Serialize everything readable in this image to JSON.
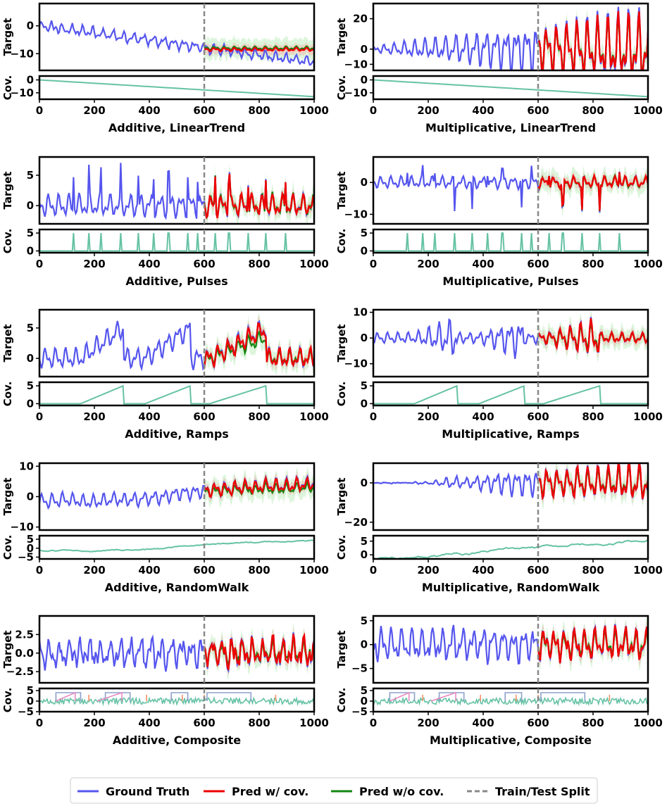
{
  "chart_data": {
    "type": "line",
    "title": "",
    "legend": {
      "placement": "bottom-center",
      "entries": [
        {
          "key": "gt",
          "label": "Ground Truth",
          "color": "#5555ee",
          "style": "solid"
        },
        {
          "key": "pw",
          "label": "Pred w/ cov.",
          "color": "#ee0000",
          "style": "solid"
        },
        {
          "key": "pwo",
          "label": "Pred w/o cov.",
          "color": "#118811",
          "style": "solid"
        },
        {
          "key": "split",
          "label": "Train/Test Split",
          "color": "#888888",
          "style": "dashed"
        }
      ]
    },
    "split_x": 600,
    "x_range": [
      0,
      1000
    ],
    "x_ticks": [
      0,
      200,
      400,
      600,
      800,
      1000
    ],
    "target_ylabel": "Target",
    "cov_ylabel": "Cov.",
    "panels": [
      {
        "name": "Additive, LinearTrend",
        "kind": "lin",
        "mode": "add",
        "ylim": [
          -16,
          8
        ],
        "yticks": [
          0,
          -10
        ],
        "tick_labels": [
          "0",
          "−10"
        ],
        "cov_ylim": [
          -15,
          3
        ],
        "cov_yticks": [
          0,
          -10
        ],
        "cov_tick_labels": [
          "0",
          "−10"
        ]
      },
      {
        "name": "Multiplicative, LinearTrend",
        "kind": "lin",
        "mode": "mul",
        "ylim": [
          -14,
          30
        ],
        "yticks": [
          20,
          0,
          -10
        ],
        "tick_labels": [
          "20",
          "0",
          "−10"
        ],
        "cov_ylim": [
          -15,
          3
        ],
        "cov_yticks": [
          0,
          -10
        ],
        "cov_tick_labels": [
          "0",
          "−10"
        ]
      },
      {
        "name": "Additive, Pulses",
        "kind": "pul",
        "mode": "add",
        "ylim": [
          -3,
          8
        ],
        "yticks": [
          5,
          0
        ],
        "tick_labels": [
          "5",
          "0"
        ],
        "cov_ylim": [
          -0.5,
          6
        ],
        "cov_yticks": [
          5,
          0
        ],
        "cov_tick_labels": [
          "5",
          "0"
        ]
      },
      {
        "name": "Multiplicative, Pulses",
        "kind": "pul",
        "mode": "mul",
        "ylim": [
          -13,
          8
        ],
        "yticks": [
          0,
          -10
        ],
        "tick_labels": [
          "0",
          "−10"
        ],
        "cov_ylim": [
          -0.5,
          6
        ],
        "cov_yticks": [
          5,
          0
        ],
        "cov_tick_labels": [
          "5",
          "0"
        ]
      },
      {
        "name": "Additive, Ramps",
        "kind": "ram",
        "mode": "add",
        "ylim": [
          -3,
          8
        ],
        "yticks": [
          5,
          0
        ],
        "tick_labels": [
          "5",
          "0"
        ],
        "cov_ylim": [
          -0.5,
          6
        ],
        "cov_yticks": [
          5,
          0
        ],
        "cov_tick_labels": [
          "5",
          "0"
        ]
      },
      {
        "name": "Multiplicative, Ramps",
        "kind": "ram",
        "mode": "mul",
        "ylim": [
          -15,
          11
        ],
        "yticks": [
          10,
          0,
          -10
        ],
        "tick_labels": [
          "10",
          "0",
          "−10"
        ],
        "cov_ylim": [
          -0.5,
          6
        ],
        "cov_yticks": [
          5,
          0
        ],
        "cov_tick_labels": [
          "5",
          "0"
        ]
      },
      {
        "name": "Additive, RandomWalk",
        "kind": "rw",
        "mode": "add",
        "ylim": [
          -11,
          11
        ],
        "yticks": [
          10,
          0,
          -10
        ],
        "tick_labels": [
          "10",
          "0",
          "−10"
        ],
        "cov_ylim": [
          -6,
          7
        ],
        "cov_yticks": [
          5,
          0,
          -5
        ],
        "cov_tick_labels": [
          "5",
          "0",
          "−5"
        ]
      },
      {
        "name": "Multiplicative, RandomWalk",
        "kind": "rw",
        "mode": "mul",
        "ylim": [
          -24,
          10
        ],
        "yticks": [
          0,
          -20
        ],
        "tick_labels": [
          "0",
          "−20"
        ],
        "cov_ylim": [
          -1.5,
          7
        ],
        "cov_yticks": [
          5,
          0
        ],
        "cov_tick_labels": [
          "5",
          "0"
        ]
      },
      {
        "name": "Additive, Composite",
        "kind": "com",
        "mode": "add",
        "ylim": [
          -4,
          5
        ],
        "yticks": [
          2.5,
          0,
          -2.5
        ],
        "tick_labels": [
          "2.5",
          "0.0",
          "−2.5"
        ],
        "cov_ylim": [
          -5,
          6
        ],
        "cov_yticks": [
          5,
          0,
          -5
        ],
        "cov_tick_labels": [
          "5",
          "0",
          "−5"
        ]
      },
      {
        "name": "Multiplicative, Composite",
        "kind": "com",
        "mode": "mul",
        "ylim": [
          -8,
          6
        ],
        "yticks": [
          5,
          0,
          -5
        ],
        "tick_labels": [
          "5",
          "0",
          "−5"
        ],
        "cov_ylim": [
          -5,
          6
        ],
        "cov_yticks": [
          5,
          0,
          -5
        ],
        "cov_tick_labels": [
          "5",
          "0",
          "−5"
        ]
      }
    ]
  }
}
